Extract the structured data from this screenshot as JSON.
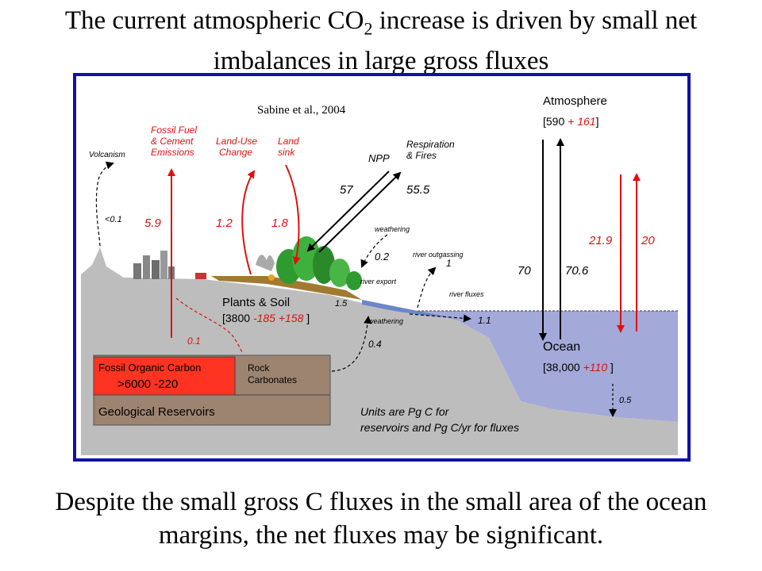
{
  "slide": {
    "title": {
      "pre": "The current atmospheric ",
      "co": "CO",
      "sub": "2",
      "post": " increase is driven by small net",
      "line2": "imbalances in large gross fluxes"
    },
    "caption": {
      "line1": "Despite the small gross C fluxes in the small area of the ocean",
      "line2": "margins, the net fluxes may be significant."
    }
  },
  "diagram": {
    "citation": "Sabine et al., 2004",
    "atmosphere": {
      "label": "Atmosphere",
      "open": "[590 ",
      "plus": "+ 161",
      "close": "]"
    },
    "labels": {
      "volcanism": "Volcanism",
      "fossil_fuel": [
        "Fossil Fuel",
        "& Cement",
        "Emissions"
      ],
      "land_use": [
        "Land-Use",
        "Change"
      ],
      "land_sink": [
        "Land",
        "sink"
      ],
      "npp": "NPP",
      "respiration": [
        "Respiration",
        "& Fires"
      ],
      "weathering_top": "weathering",
      "river_outgassing": "river outgassing",
      "river_export": "river export",
      "river_fluxes": "river fluxes",
      "weathering_bottom": "weathering"
    },
    "fluxes": {
      "volcanism": "<0.1",
      "fossil_fuel": "5.9",
      "land_use": "1.2",
      "land_sink": "1.8",
      "npp": "57",
      "respiration": "55.5",
      "weathering_top": "0.2",
      "river_outgassing": "1",
      "river_export": "1.5",
      "river_fluxes": "1.1",
      "weathering_bottom": "0.4",
      "fossil_seep": "0.1",
      "ocean_down": "70",
      "ocean_up": "70.6",
      "anthro_down": "21.9",
      "anthro_up": "20",
      "sediment": "0.5"
    },
    "plants_soil": {
      "label": "Plants & Soil",
      "open": "[3800 ",
      "red": "-185 +158",
      "close": " ]"
    },
    "ocean": {
      "label": "Ocean",
      "open": "[38,000 ",
      "red": "+110",
      "close": " ]"
    },
    "fossil_organic": {
      "label": "Fossil Organic Carbon",
      "value": ">6000 -220"
    },
    "rock": {
      "label": [
        "Rock",
        "Carbonates"
      ]
    },
    "geological": "Geological Reservoirs",
    "units": [
      "Units are Pg C for",
      "reservoirs and Pg C/yr for fluxes"
    ]
  },
  "colors": {
    "frame": "#1111a8",
    "red": "#dd1111",
    "ocean": "#a3a9d8",
    "rock_brown": "#9c8470",
    "fossil_red": "#ff3322",
    "ground": "#bdbdbd",
    "sky": "#ffffff"
  }
}
